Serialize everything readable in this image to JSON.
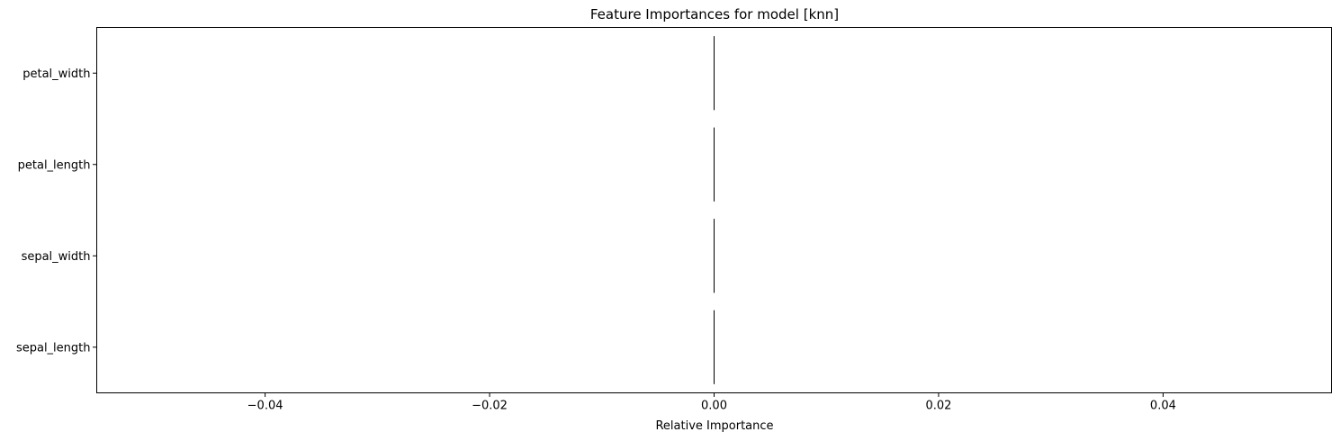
{
  "chart_data": {
    "type": "bar",
    "orientation": "horizontal",
    "title": "Feature Importances for model [knn]",
    "xlabel": "Relative Importance",
    "ylabel": "",
    "categories": [
      "sepal_length",
      "sepal_width",
      "petal_length",
      "petal_width"
    ],
    "values": [
      0.0,
      0.0,
      0.0,
      0.0
    ],
    "xlim": [
      -0.055,
      0.055
    ],
    "xticks": [
      -0.04,
      -0.02,
      0.0,
      0.02,
      0.04
    ],
    "xtick_labels": [
      "−0.04",
      "−0.02",
      "0.00",
      "0.02",
      "0.04"
    ],
    "grid": false,
    "bar_edge_color": "#000000",
    "bar_fill_color": "#ffffff"
  }
}
